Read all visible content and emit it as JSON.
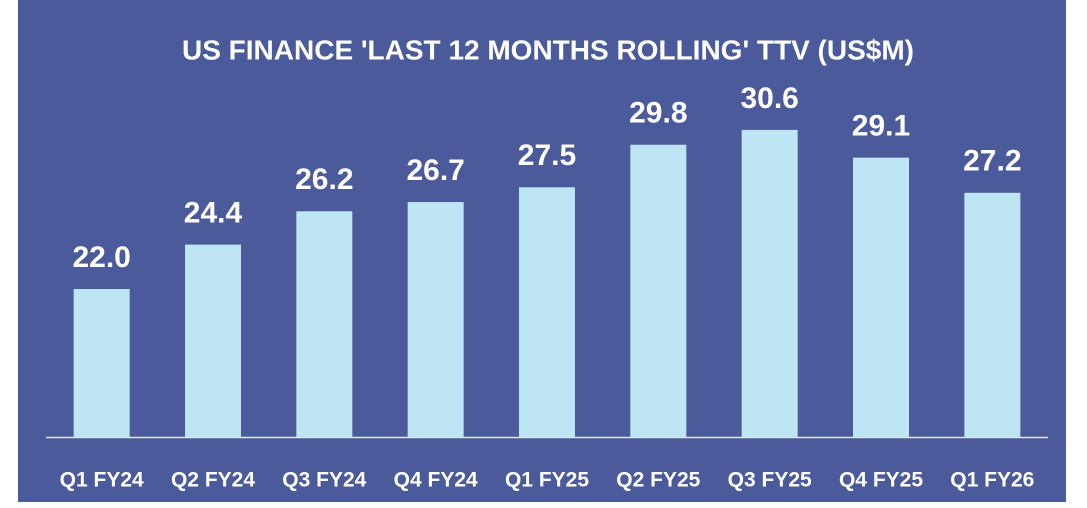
{
  "chart_data": {
    "type": "bar",
    "title": "US FINANCE 'LAST 12 MONTHS ROLLING' TTV (US$M)",
    "categories": [
      "Q1 FY24",
      "Q2 FY24",
      "Q3 FY24",
      "Q4 FY24",
      "Q1 FY25",
      "Q2 FY25",
      "Q3 FY25",
      "Q4 FY25",
      "Q1 FY26"
    ],
    "values": [
      22.0,
      24.4,
      26.2,
      26.7,
      27.5,
      29.8,
      30.6,
      29.1,
      27.2
    ],
    "value_labels": [
      "22.0",
      "24.4",
      "26.2",
      "26.7",
      "27.5",
      "29.8",
      "30.6",
      "29.1",
      "27.2"
    ],
    "color": "#bde5f4",
    "ylim": [
      14,
      32
    ]
  }
}
